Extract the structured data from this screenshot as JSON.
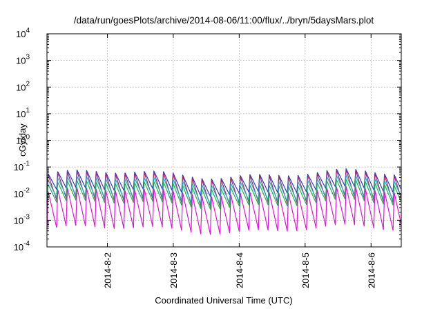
{
  "chart_data": {
    "type": "line",
    "title": "/data/run/goesPlots/archive/2014-08-06/11:00/flux/../bryn/5daysMars.plot",
    "xlabel": "Coordinated Universal Time (UTC)",
    "ylabel": "cGy/day",
    "y_scale": "log",
    "ylim": [
      0.0001,
      10000
    ],
    "xlim": [
      "2014-08-01 02:00",
      "2014-08-06 11:00"
    ],
    "grid": true,
    "y_ticks": [
      {
        "base": "10",
        "exp": "4",
        "value": 10000
      },
      {
        "base": "10",
        "exp": "3",
        "value": 1000
      },
      {
        "base": "10",
        "exp": "2",
        "value": 100
      },
      {
        "base": "10",
        "exp": "1",
        "value": 10
      },
      {
        "base": "10",
        "exp": "0",
        "value": 1
      },
      {
        "base": "10",
        "exp": "-1",
        "value": 0.1
      },
      {
        "base": "10",
        "exp": "-2",
        "value": 0.01
      },
      {
        "base": "10",
        "exp": "-3",
        "value": 0.001
      },
      {
        "base": "10",
        "exp": "-4",
        "value": 0.0001
      }
    ],
    "x_ticks": [
      "2014-8-2",
      "2014-8-3",
      "2014-8-4",
      "2014-8-5",
      "2014-8-6"
    ],
    "orbit_period_hours": 3.5,
    "series": [
      {
        "color": "#1e3ed8",
        "peak": 0.055,
        "trough": 0.012
      },
      {
        "color": "#b02060",
        "peak": 0.05,
        "trough": 0.005
      },
      {
        "color": "#18b0c0",
        "peak": 0.032,
        "trough": 0.006
      },
      {
        "color": "#20b050",
        "peak": 0.022,
        "trough": 0.004
      },
      {
        "color": "#e010d8",
        "peak": 0.012,
        "trough": 0.00045
      }
    ]
  }
}
